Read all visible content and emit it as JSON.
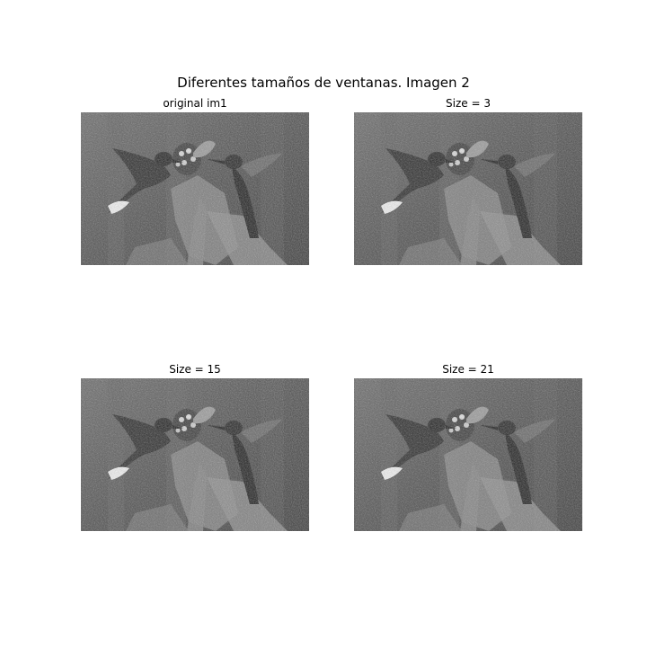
{
  "figure": {
    "title": "Diferentes tamaños de ventanas. Imagen 2"
  },
  "panels": [
    {
      "title": "original im1",
      "image": "noisy-grayscale-hummingbirds-photo"
    },
    {
      "title": "Size = 3",
      "image": "noisy-grayscale-hummingbirds-photo"
    },
    {
      "title": "Size = 15",
      "image": "noisy-grayscale-hummingbirds-photo"
    },
    {
      "title": "Size = 21",
      "image": "noisy-grayscale-hummingbirds-photo"
    }
  ]
}
